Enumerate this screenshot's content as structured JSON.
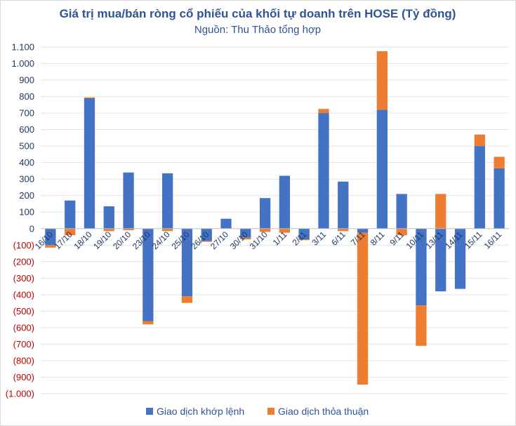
{
  "chart_data": {
    "type": "bar",
    "stacked": true,
    "title": "Giá trị mua/bán ròng cổ phiếu của khối tự doanh trên HOSE (Tỷ đồng)",
    "subtitle": "Nguồn: Thu Thảo tổng hợp",
    "categories": [
      "16/10",
      "17/10",
      "18/10",
      "19/10",
      "20/10",
      "23/10",
      "24/10",
      "25/10",
      "26/10",
      "27/10",
      "30/10",
      "31/10",
      "1/11",
      "2/11",
      "3/11",
      "6/11",
      "7/11",
      "8/11",
      "9/11",
      "10/11",
      "13/11",
      "14/11",
      "15/11",
      "16/11"
    ],
    "series": [
      {
        "name": "Giao dịch khớp lệnh",
        "color": "#4472c4",
        "values": [
          -100,
          170,
          790,
          135,
          340,
          -560,
          335,
          -410,
          -75,
          60,
          -55,
          185,
          320,
          -65,
          700,
          285,
          -25,
          720,
          210,
          -465,
          -380,
          -365,
          500,
          365
        ]
      },
      {
        "name": "Giao dịch thỏa thuận",
        "color": "#ed7d31",
        "values": [
          -15,
          -40,
          5,
          -15,
          -10,
          -20,
          -15,
          -40,
          -5,
          0,
          -10,
          -20,
          -25,
          -5,
          25,
          -15,
          -920,
          355,
          -40,
          -245,
          210,
          0,
          70,
          70
        ]
      }
    ],
    "ylim": [
      -1000,
      1100
    ],
    "yticks": [
      -1000,
      -900,
      -800,
      -700,
      -600,
      -500,
      -400,
      -300,
      -200,
      -100,
      0,
      100,
      200,
      300,
      400,
      500,
      600,
      700,
      800,
      900,
      1000,
      1100
    ],
    "ytick_labels": [
      "(1.000)",
      "(900)",
      "(800)",
      "(700)",
      "(600)",
      "(500)",
      "(400)",
      "(300)",
      "(200)",
      "(100)",
      "0",
      "100",
      "200",
      "300",
      "400",
      "500",
      "600",
      "700",
      "800",
      "900",
      "1.000",
      "1.100"
    ],
    "positive_tick_color": "#1f3864",
    "negative_tick_color": "#c00000",
    "grid": true,
    "legend": "bottom"
  }
}
